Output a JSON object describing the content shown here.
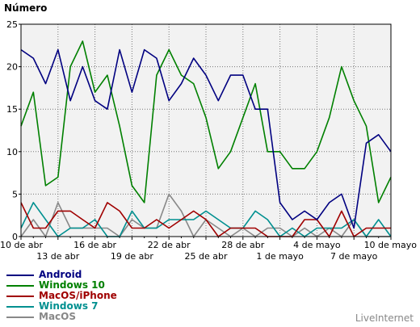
{
  "chart_data": {
    "type": "line",
    "title": "",
    "ylabel": "Número",
    "xlabel": "",
    "ylim": [
      0,
      25
    ],
    "yticks": [
      0,
      5,
      10,
      15,
      20,
      25
    ],
    "grid": true,
    "legend_position": "bottom-left",
    "x": [
      "10 de abr",
      "",
      "",
      "13 de abr",
      "",
      "",
      "16 de abr",
      "",
      "",
      "19 de abr",
      "",
      "",
      "22 de abr",
      "",
      "",
      "25 de abr",
      "",
      "",
      "28 de abr",
      "",
      "",
      "1 de mayo",
      "",
      "",
      "4 de mayo",
      "",
      "",
      "7 de mayo",
      "",
      "",
      "10 de mayo"
    ],
    "xtick_labels": [
      "10 de abr",
      "13 de abr",
      "16 de abr",
      "19 de abr",
      "22 de abr",
      "25 de abr",
      "28 de abr",
      "1 de mayo",
      "4 de mayo",
      "7 de mayo",
      "10 de mayo"
    ],
    "series": [
      {
        "name": "Android",
        "color": "#000080",
        "values": [
          22,
          21,
          18,
          22,
          16,
          20,
          16,
          15,
          22,
          17,
          22,
          21,
          16,
          18,
          21,
          19,
          16,
          19,
          19,
          15,
          15,
          4,
          2,
          3,
          2,
          4,
          5,
          1,
          11,
          12,
          10
        ]
      },
      {
        "name": "Windows 10",
        "color": "#008000",
        "values": [
          13,
          17,
          6,
          7,
          20,
          23,
          17,
          19,
          13,
          6,
          4,
          19,
          22,
          19,
          18,
          14,
          8,
          10,
          14,
          18,
          10,
          10,
          8,
          8,
          10,
          14,
          20,
          16,
          13,
          4,
          7
        ]
      },
      {
        "name": "MacOS/iPhone",
        "color": "#a00000",
        "values": [
          4,
          1,
          1,
          3,
          3,
          2,
          1,
          4,
          3,
          1,
          1,
          2,
          1,
          2,
          3,
          2,
          0,
          1,
          1,
          1,
          0,
          0,
          0,
          2,
          2,
          0,
          3,
          0,
          1,
          1,
          1
        ]
      },
      {
        "name": "Windows 7",
        "color": "#009090",
        "values": [
          1,
          4,
          2,
          0,
          1,
          1,
          2,
          0,
          0,
          3,
          1,
          1,
          2,
          2,
          2,
          3,
          2,
          1,
          1,
          3,
          2,
          0,
          1,
          0,
          1,
          1,
          1,
          2,
          0,
          2,
          0
        ]
      },
      {
        "name": "MacOS",
        "color": "#888888",
        "values": [
          0,
          2,
          0,
          4,
          1,
          1,
          1,
          1,
          0,
          2,
          1,
          1,
          5,
          3,
          0,
          2,
          1,
          0,
          1,
          0,
          1,
          1,
          0,
          1,
          0,
          1,
          0,
          2,
          0,
          0,
          0
        ]
      }
    ]
  },
  "branding": "LiveInternet"
}
